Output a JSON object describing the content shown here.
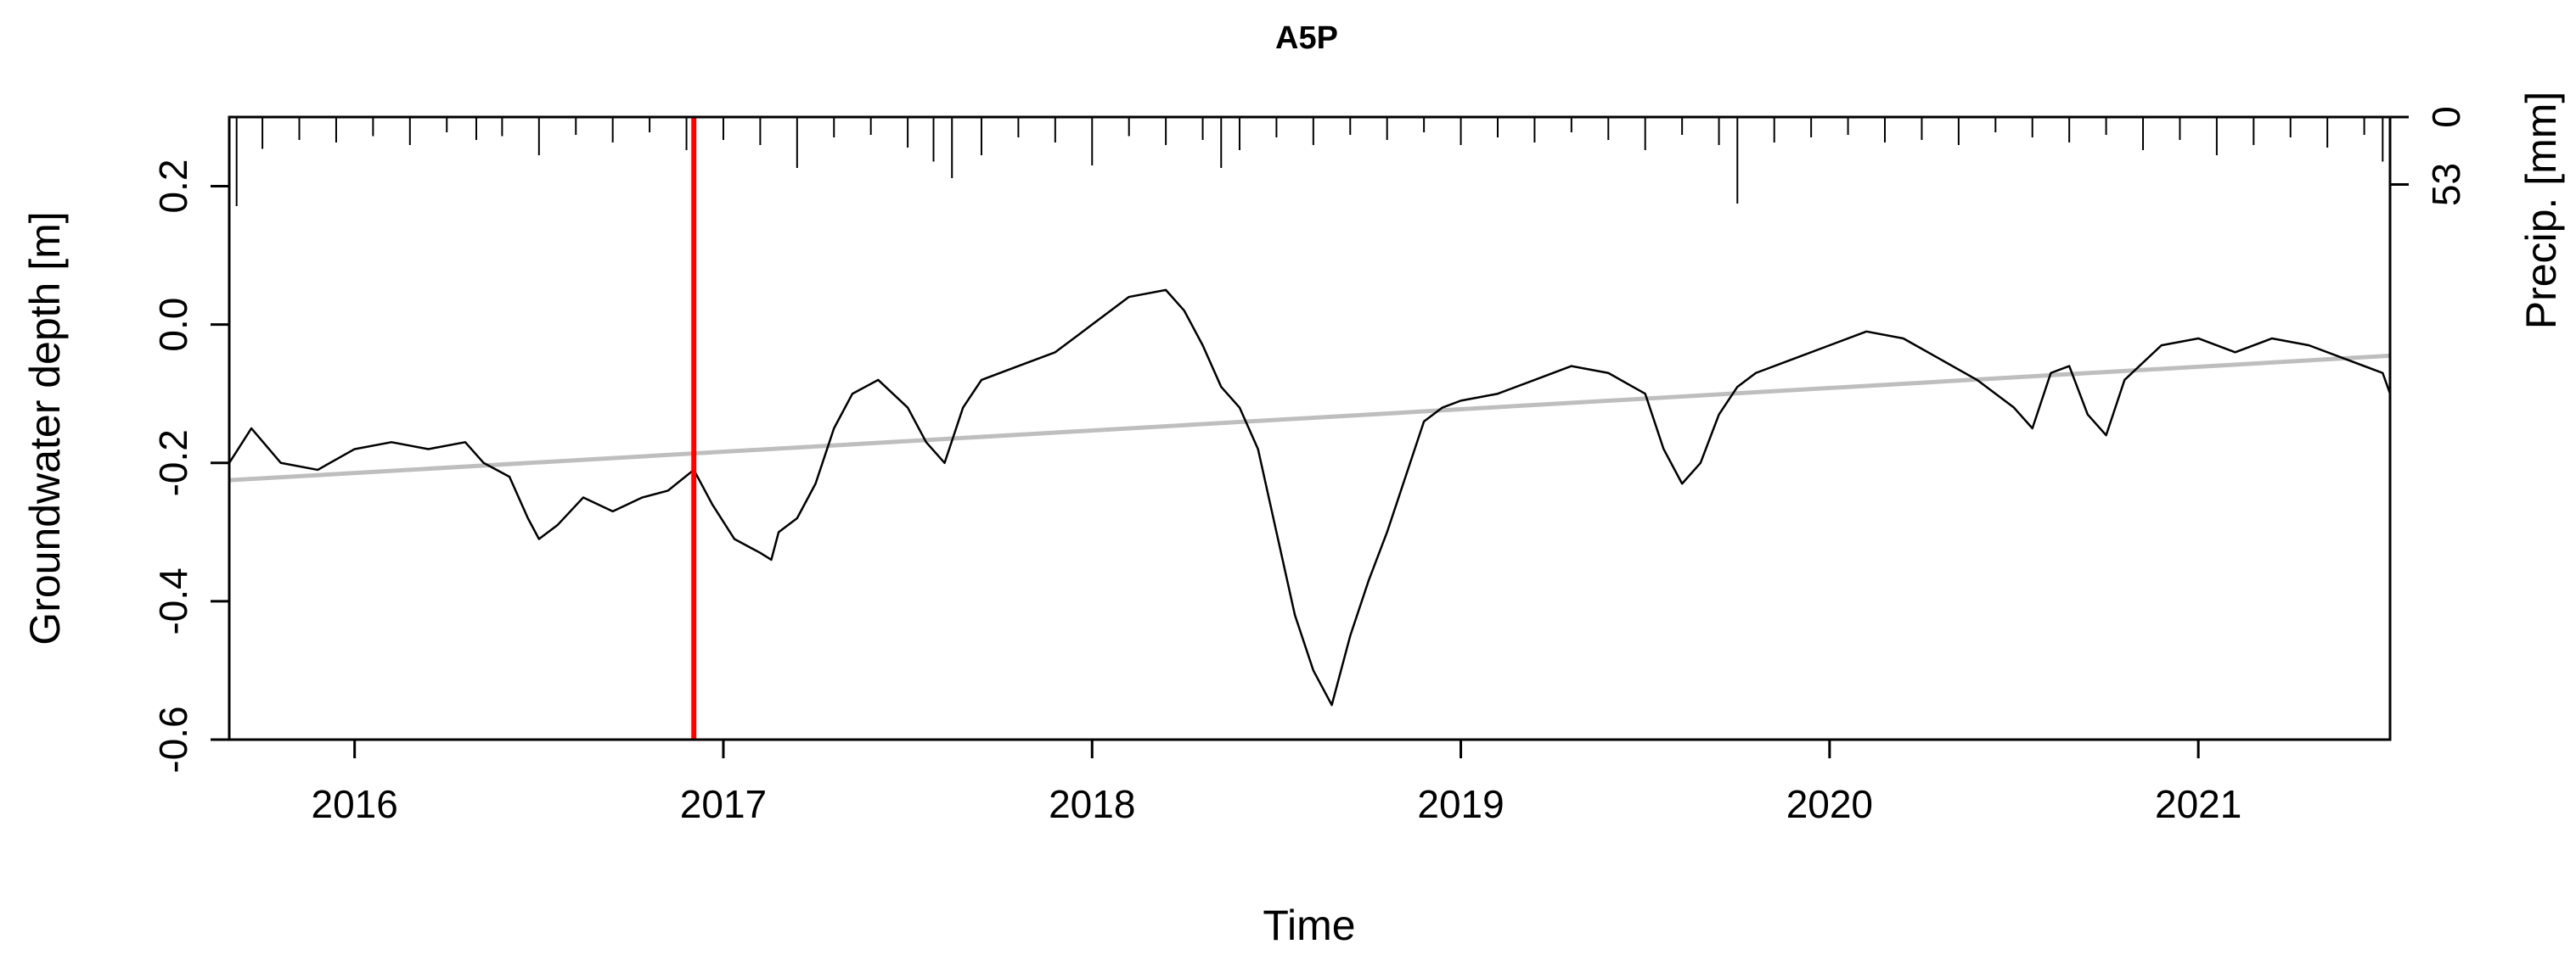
{
  "chart_data": {
    "type": "line",
    "title": "A5P",
    "xlabel": "Time",
    "ylabel": "Groundwater depth [m]",
    "y2label": "Precip. [mm]",
    "xlim": [
      2015.66,
      2021.52
    ],
    "ylim": [
      -0.6,
      0.3
    ],
    "y2lim": [
      0,
      180
    ],
    "x_ticks": [
      2016,
      2017,
      2018,
      2019,
      2020,
      2021
    ],
    "x_tick_labels": [
      "2016",
      "2017",
      "2018",
      "2019",
      "2020",
      "2021"
    ],
    "y_ticks": [
      -0.6,
      -0.4,
      -0.2,
      0.0,
      0.2
    ],
    "y_tick_labels": [
      "-0.6",
      "-0.4",
      "-0.2",
      "0.0",
      "0.2"
    ],
    "y2_ticks": [
      0,
      53
    ],
    "y2_tick_labels": [
      "0",
      "53"
    ],
    "grid": false,
    "legend": "none",
    "colors": {
      "groundwater": "#000000",
      "precipitation": "#000000",
      "trend": "#bebebe",
      "event_line": "#ff0000"
    },
    "series": [
      {
        "x": [
          2015.66,
          2015.72,
          2015.8,
          2015.9,
          2016.0,
          2016.1,
          2016.2,
          2016.3,
          2016.35,
          2016.42,
          2016.47,
          2016.5,
          2016.55,
          2016.62,
          2016.7,
          2016.78,
          2016.85,
          2016.92,
          2016.97,
          2017.03,
          2017.1,
          2017.13,
          2017.15,
          2017.2,
          2017.25,
          2017.3,
          2017.35,
          2017.42,
          2017.5,
          2017.55,
          2017.6,
          2017.65,
          2017.7,
          2017.8,
          2017.9,
          2018.0,
          2018.1,
          2018.2,
          2018.25,
          2018.3,
          2018.35,
          2018.4,
          2018.45,
          2018.5,
          2018.55,
          2018.6,
          2018.65,
          2018.7,
          2018.75,
          2018.8,
          2018.85,
          2018.9,
          2018.95,
          2019.0,
          2019.1,
          2019.2,
          2019.3,
          2019.4,
          2019.5,
          2019.55,
          2019.6,
          2019.65,
          2019.7,
          2019.75,
          2019.8,
          2019.9,
          2020.0,
          2020.1,
          2020.2,
          2020.3,
          2020.4,
          2020.5,
          2020.55,
          2020.6,
          2020.65,
          2020.7,
          2020.75,
          2020.8,
          2020.9,
          2021.0,
          2021.1,
          2021.2,
          2021.3,
          2021.4,
          2021.5,
          2021.52
        ],
        "y": [
          -0.2,
          -0.15,
          -0.2,
          -0.21,
          -0.18,
          -0.17,
          -0.18,
          -0.17,
          -0.2,
          -0.22,
          -0.28,
          -0.31,
          -0.29,
          -0.25,
          -0.27,
          -0.25,
          -0.24,
          -0.21,
          -0.26,
          -0.31,
          -0.33,
          -0.34,
          -0.3,
          -0.28,
          -0.23,
          -0.15,
          -0.1,
          -0.08,
          -0.12,
          -0.17,
          -0.2,
          -0.12,
          -0.08,
          -0.06,
          -0.04,
          0.0,
          0.04,
          0.05,
          0.02,
          -0.03,
          -0.09,
          -0.12,
          -0.18,
          -0.3,
          -0.42,
          -0.5,
          -0.55,
          -0.45,
          -0.37,
          -0.3,
          -0.22,
          -0.14,
          -0.12,
          -0.11,
          -0.1,
          -0.08,
          -0.06,
          -0.07,
          -0.1,
          -0.18,
          -0.23,
          -0.2,
          -0.13,
          -0.09,
          -0.07,
          -0.05,
          -0.03,
          -0.01,
          -0.02,
          -0.05,
          -0.08,
          -0.12,
          -0.15,
          -0.07,
          -0.06,
          -0.13,
          -0.16,
          -0.08,
          -0.03,
          -0.02,
          -0.04,
          -0.02,
          -0.03,
          -0.05,
          -0.07,
          -0.1
        ]
      },
      {
        "x": [
          2015.66,
          2021.52
        ],
        "y": [
          -0.225,
          -0.045
        ]
      }
    ],
    "event_lines_x": [
      2016.92
    ],
    "precipitation": {
      "x": [
        2015.68,
        2015.75,
        2015.85,
        2015.95,
        2016.05,
        2016.15,
        2016.25,
        2016.33,
        2016.4,
        2016.5,
        2016.6,
        2016.7,
        2016.8,
        2016.9,
        2017.0,
        2017.1,
        2017.2,
        2017.3,
        2017.4,
        2017.5,
        2017.57,
        2017.62,
        2017.7,
        2017.8,
        2017.9,
        2018.0,
        2018.1,
        2018.2,
        2018.3,
        2018.35,
        2018.4,
        2018.5,
        2018.6,
        2018.7,
        2018.8,
        2018.9,
        2019.0,
        2019.1,
        2019.2,
        2019.3,
        2019.4,
        2019.5,
        2019.6,
        2019.7,
        2019.75,
        2019.85,
        2019.95,
        2020.05,
        2020.15,
        2020.25,
        2020.35,
        2020.45,
        2020.55,
        2020.65,
        2020.75,
        2020.85,
        2020.95,
        2021.05,
        2021.15,
        2021.25,
        2021.35,
        2021.45,
        2021.5
      ],
      "values": [
        70,
        25,
        18,
        20,
        15,
        22,
        12,
        18,
        15,
        30,
        14,
        20,
        12,
        26,
        18,
        22,
        40,
        16,
        14,
        24,
        35,
        48,
        30,
        16,
        20,
        38,
        15,
        22,
        18,
        40,
        26,
        16,
        22,
        14,
        18,
        12,
        22,
        16,
        20,
        12,
        18,
        26,
        14,
        22,
        68,
        20,
        16,
        14,
        20,
        18,
        22,
        12,
        16,
        20,
        14,
        26,
        18,
        30,
        22,
        16,
        24,
        14,
        35
      ]
    }
  }
}
